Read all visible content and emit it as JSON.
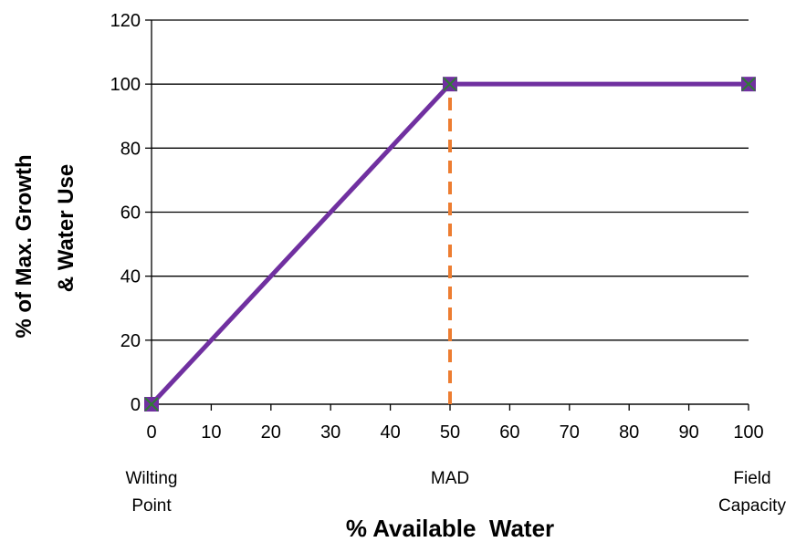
{
  "chart_data": {
    "type": "line",
    "xlabel": "% Available  Water",
    "ylabel_lines": [
      "% of Max. Growth",
      "& Water Use"
    ],
    "xlim": [
      0,
      100
    ],
    "ylim": [
      0,
      120
    ],
    "x_ticks": [
      0,
      10,
      20,
      30,
      40,
      50,
      60,
      70,
      80,
      90,
      100
    ],
    "y_ticks": [
      0,
      20,
      40,
      60,
      80,
      100,
      120
    ],
    "grid": "horizontal",
    "series": [
      {
        "x": [
          0,
          50,
          100
        ],
        "values": [
          0,
          100,
          100
        ],
        "color": "#7030a0",
        "marker": "x",
        "marker_color": "#2e7d32"
      }
    ],
    "reference_lines": [
      {
        "x": 50,
        "y_from": 0,
        "y_to": 100,
        "color": "#ed7d31",
        "style": "dashed"
      }
    ],
    "annotations": [
      {
        "x": 0,
        "lines": [
          "Wilting",
          "Point"
        ]
      },
      {
        "x": 50,
        "lines": [
          "MAD"
        ]
      },
      {
        "x": 100,
        "lines": [
          "Field",
          "Capacity"
        ]
      }
    ]
  }
}
